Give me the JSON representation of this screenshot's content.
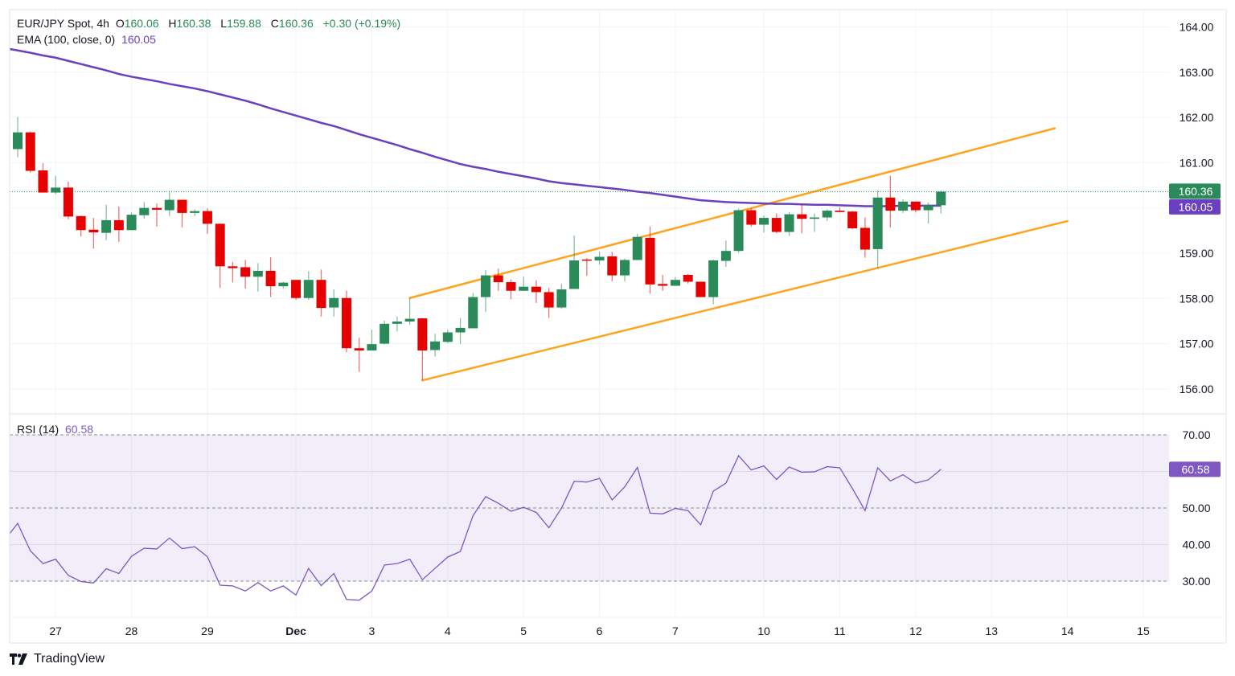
{
  "header": {
    "symbol": "EUR/JPY Spot, 4h",
    "open_label": "O",
    "open": "160.06",
    "high_label": "H",
    "high": "160.38",
    "low_label": "L",
    "low": "159.88",
    "close_label": "C",
    "close": "160.36",
    "change": "+0.30 (+0.19%)",
    "ema_label": "EMA (100, close, 0)",
    "ema_value": "160.05"
  },
  "rsi_legend": {
    "label": "RSI (14)",
    "value": "60.58"
  },
  "brand": "TradingView",
  "colors": {
    "up": "#2b8a5a",
    "down": "#e60000",
    "ema": "#6a3fc0",
    "rsi": "#7e57c2",
    "channel": "#ffa31a",
    "grid": "#f0f3fa"
  },
  "chart_data": {
    "type": "candlestick",
    "price_axis": {
      "ticks": [
        "164.00",
        "163.00",
        "162.00",
        "161.00",
        "159.00",
        "158.00",
        "157.00",
        "156.00"
      ],
      "tick_values": [
        164,
        163,
        162,
        161,
        159,
        158,
        157,
        156
      ],
      "range": [
        155.45,
        164.38
      ]
    },
    "last_price": {
      "value": 160.36,
      "label": "160.36"
    },
    "ema_tag": {
      "value": 160.05,
      "label": "160.05"
    },
    "time_axis": [
      {
        "label": "27",
        "bar": 3
      },
      {
        "label": "28",
        "bar": 9
      },
      {
        "label": "29",
        "bar": 15
      },
      {
        "label": "Dec",
        "bar": 22,
        "bold": true
      },
      {
        "label": "3",
        "bar": 28
      },
      {
        "label": "4",
        "bar": 34
      },
      {
        "label": "5",
        "bar": 40
      },
      {
        "label": "6",
        "bar": 46
      },
      {
        "label": "7",
        "bar": 52
      },
      {
        "label": "10",
        "bar": 59
      },
      {
        "label": "11",
        "bar": 65
      },
      {
        "label": "12",
        "bar": 71
      },
      {
        "label": "13",
        "bar": 77
      },
      {
        "label": "14",
        "bar": 83
      },
      {
        "label": "15",
        "bar": 89
      }
    ],
    "candles_ohlc": [
      [
        161.3,
        162.01,
        161.12,
        161.67
      ],
      [
        161.67,
        161.69,
        160.78,
        160.82
      ],
      [
        160.83,
        160.99,
        160.34,
        160.34
      ],
      [
        160.34,
        160.71,
        160.3,
        160.45
      ],
      [
        160.45,
        160.58,
        159.75,
        159.81
      ],
      [
        159.82,
        159.83,
        159.37,
        159.51
      ],
      [
        159.52,
        159.78,
        159.1,
        159.46
      ],
      [
        159.45,
        160.07,
        159.29,
        159.73
      ],
      [
        159.73,
        160.03,
        159.25,
        159.51
      ],
      [
        159.51,
        159.9,
        159.51,
        159.85
      ],
      [
        159.84,
        160.13,
        159.76,
        160.0
      ],
      [
        160.0,
        160.1,
        159.59,
        159.96
      ],
      [
        159.95,
        160.36,
        159.82,
        160.18
      ],
      [
        160.18,
        160.18,
        159.57,
        159.89
      ],
      [
        159.89,
        159.97,
        159.82,
        159.93
      ],
      [
        159.93,
        159.99,
        159.43,
        159.65
      ],
      [
        159.65,
        159.66,
        158.23,
        158.71
      ],
      [
        158.71,
        158.81,
        158.36,
        158.67
      ],
      [
        158.69,
        158.85,
        158.22,
        158.48
      ],
      [
        158.48,
        158.78,
        158.15,
        158.61
      ],
      [
        158.61,
        158.91,
        158.03,
        158.27
      ],
      [
        158.27,
        158.37,
        158.22,
        158.35
      ],
      [
        158.41,
        158.41,
        157.97,
        158.01
      ],
      [
        158.01,
        158.6,
        157.97,
        158.41
      ],
      [
        158.41,
        158.64,
        157.6,
        157.79
      ],
      [
        157.8,
        158.2,
        157.6,
        158.01
      ],
      [
        158.01,
        158.17,
        156.81,
        156.9
      ],
      [
        156.9,
        157.13,
        156.38,
        156.85
      ],
      [
        156.85,
        157.31,
        156.85,
        156.99
      ],
      [
        157.0,
        157.51,
        156.98,
        157.44
      ],
      [
        157.44,
        157.6,
        157.27,
        157.49
      ],
      [
        157.49,
        158.01,
        157.42,
        157.55
      ],
      [
        157.56,
        157.57,
        156.19,
        156.85
      ],
      [
        156.86,
        157.22,
        156.72,
        157.05
      ],
      [
        157.04,
        157.31,
        157.01,
        157.25
      ],
      [
        157.25,
        157.57,
        156.99,
        157.35
      ],
      [
        157.34,
        158.12,
        157.34,
        158.03
      ],
      [
        158.03,
        158.63,
        157.7,
        158.51
      ],
      [
        158.51,
        158.66,
        158.17,
        158.36
      ],
      [
        158.36,
        158.42,
        157.98,
        158.17
      ],
      [
        158.17,
        158.48,
        158.17,
        158.26
      ],
      [
        158.26,
        158.4,
        157.9,
        158.14
      ],
      [
        158.14,
        158.23,
        157.57,
        157.8
      ],
      [
        157.8,
        158.32,
        157.77,
        158.2
      ],
      [
        158.21,
        159.39,
        158.21,
        158.84
      ],
      [
        158.86,
        158.89,
        158.5,
        158.84
      ],
      [
        158.84,
        159.03,
        158.75,
        158.92
      ],
      [
        158.93,
        159.03,
        158.38,
        158.51
      ],
      [
        158.51,
        158.88,
        158.38,
        158.85
      ],
      [
        158.85,
        159.43,
        158.85,
        159.36
      ],
      [
        159.34,
        159.59,
        158.1,
        158.31
      ],
      [
        158.32,
        158.52,
        158.17,
        158.28
      ],
      [
        158.28,
        158.47,
        158.28,
        158.41
      ],
      [
        158.52,
        158.54,
        158.33,
        158.37
      ],
      [
        158.37,
        158.37,
        158.03,
        158.03
      ],
      [
        158.03,
        158.86,
        157.87,
        158.84
      ],
      [
        158.83,
        159.28,
        158.7,
        159.05
      ],
      [
        159.05,
        159.99,
        159.01,
        159.95
      ],
      [
        159.95,
        159.99,
        159.59,
        159.63
      ],
      [
        159.63,
        159.83,
        159.46,
        159.78
      ],
      [
        159.78,
        159.88,
        159.44,
        159.47
      ],
      [
        159.47,
        159.91,
        159.38,
        159.86
      ],
      [
        159.86,
        160.07,
        159.44,
        159.76
      ],
      [
        159.76,
        159.88,
        159.47,
        159.79
      ],
      [
        159.79,
        159.97,
        159.71,
        159.94
      ],
      [
        159.94,
        160.01,
        159.9,
        159.91
      ],
      [
        159.92,
        159.93,
        159.53,
        159.55
      ],
      [
        159.56,
        159.79,
        158.9,
        159.08
      ],
      [
        159.09,
        160.39,
        158.66,
        160.23
      ],
      [
        160.23,
        160.71,
        159.57,
        159.94
      ],
      [
        159.94,
        160.19,
        159.89,
        160.14
      ],
      [
        160.14,
        160.14,
        159.9,
        159.95
      ],
      [
        159.95,
        160.12,
        159.66,
        160.06
      ],
      [
        160.06,
        160.38,
        159.88,
        160.36
      ]
    ],
    "ema100": [
      163.48,
      163.43,
      163.37,
      163.32,
      163.25,
      163.18,
      163.11,
      163.04,
      162.96,
      162.9,
      162.85,
      162.8,
      162.74,
      162.69,
      162.64,
      162.58,
      162.51,
      162.44,
      162.37,
      162.29,
      162.2,
      162.12,
      162.04,
      161.96,
      161.88,
      161.81,
      161.72,
      161.63,
      161.55,
      161.47,
      161.39,
      161.3,
      161.22,
      161.13,
      161.05,
      160.97,
      160.91,
      160.86,
      160.8,
      160.75,
      160.7,
      160.65,
      160.59,
      160.55,
      160.52,
      160.49,
      160.46,
      160.43,
      160.4,
      160.36,
      160.33,
      160.29,
      160.25,
      160.21,
      160.17,
      160.15,
      160.13,
      160.12,
      160.11,
      160.1,
      160.09,
      160.09,
      160.08,
      160.07,
      160.07,
      160.06,
      160.05,
      160.04,
      160.04,
      160.04,
      160.05,
      160.05,
      160.05,
      160.05
    ],
    "channel_lines": [
      {
        "from": {
          "bar": 31,
          "price": 158.01
        },
        "to": {
          "bar": 82,
          "price": 161.76
        }
      },
      {
        "from": {
          "bar": 32,
          "price": 156.19
        },
        "to": {
          "bar": 83,
          "price": 159.71
        }
      }
    ],
    "rsi": {
      "values": [
        45.8,
        38.3,
        34.8,
        36.0,
        31.6,
        29.9,
        29.5,
        33.4,
        32.1,
        36.8,
        39.0,
        38.8,
        41.8,
        38.9,
        39.4,
        36.7,
        28.9,
        28.7,
        27.3,
        29.6,
        27.3,
        28.7,
        26.2,
        33.5,
        28.8,
        32.1,
        25.0,
        24.8,
        27.3,
        34.4,
        34.8,
        36.0,
        30.4,
        33.5,
        36.6,
        38.1,
        47.9,
        53.1,
        51.3,
        49.1,
        50.2,
        48.8,
        44.6,
        50.0,
        57.3,
        57.1,
        58.1,
        52.2,
        55.8,
        61.1,
        48.6,
        48.4,
        49.9,
        49.3,
        45.4,
        54.6,
        56.8,
        64.3,
        60.4,
        61.5,
        57.8,
        61.2,
        59.8,
        59.9,
        61.3,
        61.0,
        55.3,
        49.3,
        61.0,
        57.4,
        59.1,
        56.8,
        57.7,
        60.58
      ],
      "ticks": [
        "70.00",
        "50.00",
        "40.00",
        "30.00"
      ],
      "tick_values": [
        70,
        50,
        40,
        30
      ],
      "levels": [
        70,
        50,
        30
      ],
      "last": {
        "value": 60.58,
        "label": "60.58"
      },
      "range": [
        19.7,
        75.3
      ]
    }
  }
}
